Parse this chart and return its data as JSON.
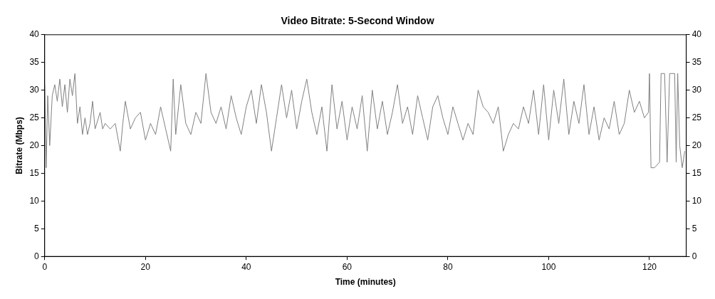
{
  "chart_data": {
    "type": "line",
    "title": "Video Bitrate: 5-Second Window",
    "xlabel": "Time (minutes)",
    "ylabel": "Bitrate (Mbps)",
    "x": [
      0,
      0.3,
      0.6,
      1,
      1.5,
      2,
      2.5,
      3,
      3.5,
      4,
      4.5,
      5,
      5.5,
      6,
      6.5,
      7,
      7.5,
      8,
      8.5,
      9,
      9.5,
      10,
      11,
      11.5,
      12,
      13,
      14,
      15,
      15.5,
      16,
      17,
      18,
      19,
      20,
      21,
      22,
      23,
      24,
      25,
      25.5,
      26,
      27,
      28,
      29,
      30,
      31,
      32,
      33,
      34,
      35,
      36,
      37,
      38,
      39,
      40,
      41,
      42,
      43,
      44,
      45,
      46,
      47,
      48,
      49,
      50,
      51,
      52,
      53,
      54,
      55,
      56,
      57,
      58,
      59,
      60,
      61,
      62,
      63,
      64,
      65,
      66,
      67,
      68,
      69,
      70,
      71,
      72,
      73,
      74,
      75,
      76,
      77,
      78,
      79,
      80,
      81,
      82,
      83,
      84,
      85,
      86,
      87,
      88,
      89,
      90,
      91,
      92,
      93,
      94,
      95,
      96,
      97,
      98,
      99,
      100,
      101,
      102,
      103,
      104,
      105,
      106,
      107,
      108,
      109,
      110,
      111,
      112,
      113,
      114,
      115,
      116,
      117,
      118,
      119,
      119.8,
      120,
      120.3,
      121,
      122,
      122.3,
      123,
      123.5,
      124,
      125,
      125.3,
      125.6,
      126,
      126.5,
      127
    ],
    "series": [
      {
        "color": "#808080",
        "values": [
          31,
          16,
          29,
          20,
          29,
          31,
          28,
          32,
          27,
          31,
          26,
          32,
          29,
          33,
          24,
          27,
          22,
          25,
          22,
          24,
          28,
          23,
          26,
          23,
          24,
          23,
          24,
          19,
          24,
          28,
          23,
          25,
          26,
          21,
          24,
          22,
          27,
          23,
          19,
          32,
          22,
          31,
          24,
          22,
          26,
          24,
          33,
          26,
          24,
          27,
          23,
          29,
          25,
          22,
          27,
          30,
          24,
          31,
          26,
          19,
          25,
          31,
          25,
          30,
          23,
          28,
          32,
          26,
          22,
          27,
          19,
          31,
          23,
          28,
          21,
          27,
          23,
          29,
          19,
          30,
          23,
          28,
          22,
          26,
          31,
          24,
          27,
          22,
          29,
          25,
          21,
          27,
          29,
          25,
          22,
          27,
          24,
          21,
          24,
          22,
          30,
          27,
          26,
          24,
          27,
          19,
          22,
          24,
          23,
          27,
          24,
          30,
          22,
          31,
          21,
          30,
          24,
          32,
          22,
          28,
          24,
          31,
          22,
          27,
          21,
          25,
          23,
          28,
          22,
          24,
          30,
          26,
          28,
          25,
          26,
          33,
          16,
          16,
          17,
          33,
          33,
          17,
          33,
          33,
          17,
          33,
          20,
          16,
          19
        ]
      }
    ],
    "xlim": [
      0,
      127.3
    ],
    "xticks": [
      0,
      20,
      40,
      60,
      80,
      100,
      120
    ],
    "ylim": [
      0,
      40
    ],
    "yticks": [
      0,
      5,
      10,
      15,
      20,
      25,
      30,
      35,
      40
    ],
    "y2lim": [
      0,
      40
    ],
    "y2ticks": [
      0,
      5,
      10,
      15,
      20,
      25,
      30,
      35,
      40
    ],
    "grid": false,
    "legend": false,
    "marker": "none",
    "line_style": "solid"
  }
}
